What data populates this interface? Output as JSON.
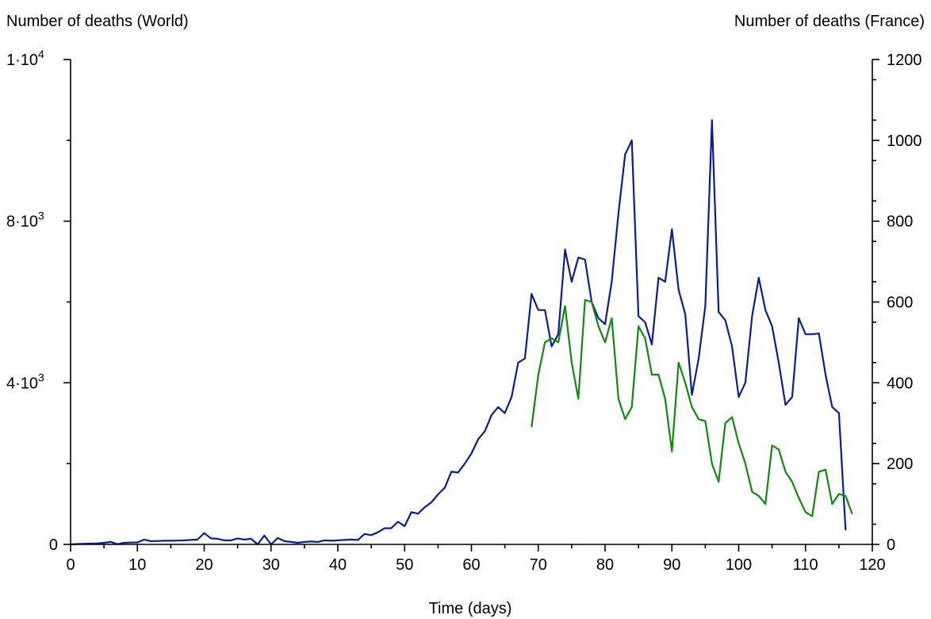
{
  "chart_data": {
    "type": "line",
    "title": "",
    "xlabel": "Time (days)",
    "ylabel_left": "Number of deaths (World)",
    "ylabel_right": "Number of deaths (France)",
    "xlim": [
      0,
      120
    ],
    "ylim_left": [
      0,
      12000
    ],
    "ylim_right": [
      0,
      1200
    ],
    "x_ticks": [
      0,
      10,
      20,
      30,
      40,
      50,
      60,
      70,
      80,
      90,
      100,
      110,
      120
    ],
    "y_left_ticks": [
      {
        "value": 0,
        "mant": "0",
        "exp": ""
      },
      {
        "value": 4000,
        "mant": "4·10",
        "exp": "3"
      },
      {
        "value": 8000,
        "mant": "8·10",
        "exp": "3"
      },
      {
        "value": 12000,
        "mant": "1·10",
        "exp": "4"
      }
    ],
    "y_right_ticks": [
      0,
      200,
      400,
      600,
      800,
      1000,
      1200
    ],
    "grid": false,
    "legend": "none",
    "series": [
      {
        "axis": "left",
        "color": "#0a1f8f",
        "x": [
          0,
          1,
          2,
          3,
          4,
          5,
          6,
          7,
          8,
          9,
          10,
          11,
          12,
          13,
          14,
          15,
          16,
          17,
          18,
          19,
          20,
          21,
          22,
          23,
          24,
          25,
          26,
          27,
          28,
          29,
          30,
          31,
          32,
          33,
          34,
          35,
          36,
          37,
          38,
          39,
          40,
          41,
          42,
          43,
          44,
          45,
          46,
          47,
          48,
          49,
          50,
          51,
          52,
          53,
          54,
          55,
          56,
          57,
          58,
          59,
          60,
          61,
          62,
          63,
          64,
          65,
          66,
          67,
          68,
          69,
          70,
          71,
          72,
          73,
          74,
          75,
          76,
          77,
          78,
          79,
          80,
          81,
          82,
          83,
          84,
          85,
          86,
          87,
          88,
          89,
          90,
          91,
          92,
          93,
          94,
          95,
          96,
          97,
          98,
          99,
          100,
          101,
          102,
          103,
          104,
          105,
          106,
          107,
          108,
          109,
          110,
          111,
          112,
          113,
          114,
          115,
          116
        ],
        "values": [
          0,
          10,
          15,
          20,
          25,
          40,
          60,
          5,
          40,
          45,
          50,
          120,
          80,
          85,
          90,
          90,
          95,
          100,
          110,
          120,
          280,
          150,
          140,
          100,
          100,
          150,
          120,
          140,
          0,
          220,
          0,
          160,
          80,
          60,
          40,
          60,
          70,
          60,
          100,
          90,
          100,
          110,
          120,
          110,
          260,
          230,
          300,
          400,
          400,
          560,
          450,
          800,
          760,
          920,
          1040,
          1240,
          1400,
          1800,
          1780,
          2000,
          2250,
          2600,
          2800,
          3200,
          3400,
          3250,
          3650,
          4500,
          4600,
          6200,
          5800,
          5800,
          4900,
          5200,
          7300,
          6500,
          7100,
          7050,
          6000,
          5600,
          5450,
          6500,
          8200,
          9650,
          10000,
          5650,
          5500,
          4950,
          6600,
          6500,
          7800,
          6300,
          5700,
          3700,
          4600,
          5900,
          10500,
          5750,
          5550,
          4900,
          3650,
          4000,
          5650,
          6600,
          5800,
          5400,
          4500,
          3450,
          3650,
          5600,
          5200,
          5200,
          5220,
          4200,
          3400,
          3250,
          350
        ]
      },
      {
        "axis": "right",
        "color": "#0f8a0f",
        "x": [
          69,
          70,
          71,
          72,
          73,
          74,
          75,
          76,
          77,
          78,
          79,
          80,
          81,
          82,
          83,
          84,
          85,
          86,
          87,
          88,
          89,
          90,
          91,
          92,
          93,
          94,
          95,
          96,
          97,
          98,
          99,
          100,
          101,
          102,
          103,
          104,
          105,
          106,
          107,
          108,
          109,
          110,
          111,
          112,
          113,
          114,
          115,
          116,
          117
        ],
        "values": [
          290,
          420,
          500,
          510,
          500,
          590,
          450,
          360,
          605,
          600,
          540,
          500,
          560,
          360,
          310,
          340,
          540,
          510,
          420,
          420,
          360,
          230,
          450,
          400,
          340,
          310,
          305,
          200,
          155,
          300,
          315,
          250,
          200,
          130,
          120,
          100,
          245,
          235,
          180,
          155,
          115,
          80,
          70,
          180,
          185,
          100,
          125,
          120,
          75
        ]
      }
    ]
  }
}
